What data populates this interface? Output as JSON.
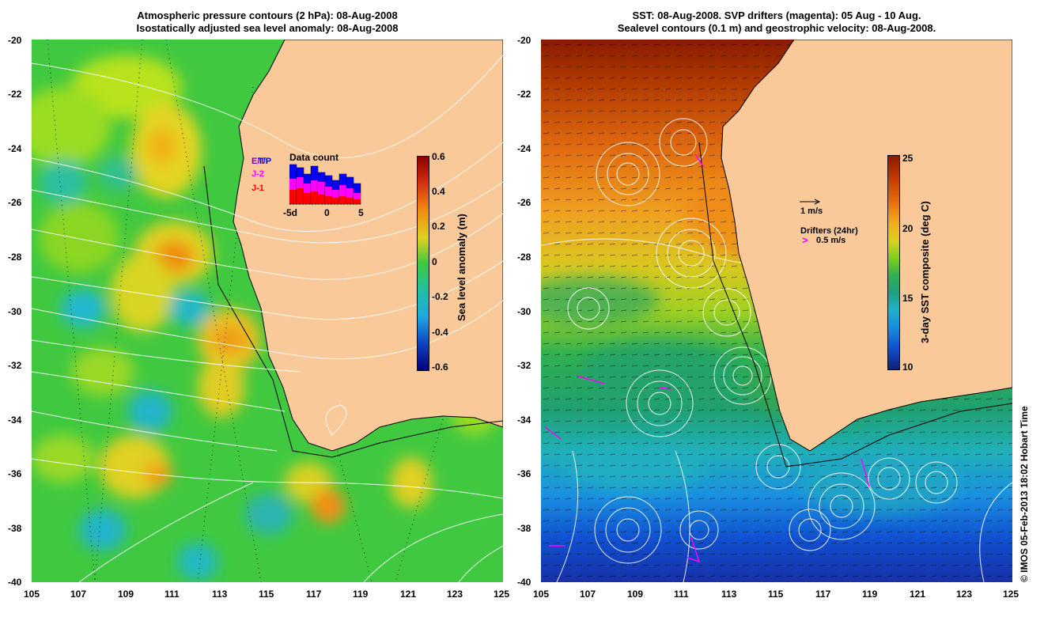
{
  "left_panel": {
    "title_line1": "Atmospheric pressure contours (2 hPa): 08-Aug-2008",
    "title_line2": "Isostatically adjusted sea level anomaly: 08-Aug-2008",
    "legend": {
      "e": "E/T",
      "t": "T/P",
      "j2": "J-2",
      "j1": "J-1",
      "data_count_title": "Data count",
      "axis": [
        "-5d",
        "0",
        "5"
      ]
    },
    "colorbar": {
      "title": "Sea level anomaly (m)",
      "labels": [
        "0.6",
        "0.4",
        "0.2",
        "0",
        "-0.2",
        "-0.4",
        "-0.6"
      ]
    }
  },
  "right_panel": {
    "title_line1": "SST: 08-Aug-2008. SVP drifters (magenta): 05 Aug - 10 Aug.",
    "title_line2": "Sealevel contours (0.1 m) and geostrophic velocity: 08-Aug-2008.",
    "vector_scale": "1 m/s",
    "drifters_label": "Drifters (24hr)",
    "drifter_scale": "0.5 m/s",
    "colorbar": {
      "title": "3-day SST composite (deg C)",
      "labels": [
        "25",
        "20",
        "15",
        "10"
      ]
    }
  },
  "axes": {
    "lat_labels": [
      "-20",
      "-22",
      "-24",
      "-26",
      "-28",
      "-30",
      "-32",
      "-34",
      "-36",
      "-38",
      "-40"
    ],
    "lon_labels": [
      "105",
      "107",
      "109",
      "111",
      "113",
      "115",
      "117",
      "119",
      "121",
      "123",
      "125"
    ]
  },
  "credit": "© IMOS 05-Feb-2013 18:02 Hobart Time",
  "colors": {
    "land": "#f9c99a",
    "green": "#3fc83f",
    "sst_hot": "#8a1a00",
    "drifter": "#ff00ff"
  }
}
